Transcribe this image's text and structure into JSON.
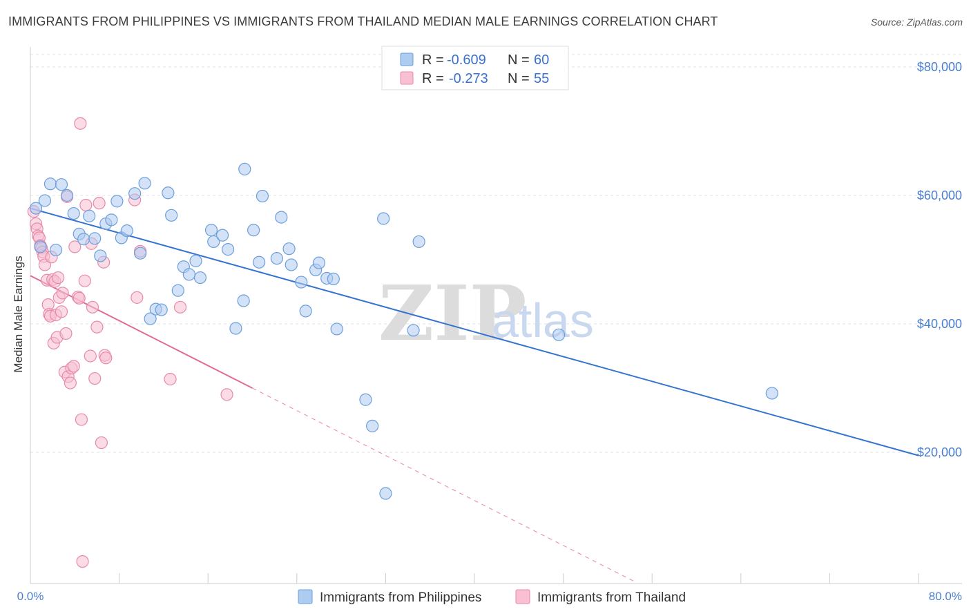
{
  "title": "IMMIGRANTS FROM PHILIPPINES VS IMMIGRANTS FROM THAILAND MEDIAN MALE EARNINGS CORRELATION CHART",
  "source": "Source: ZipAtlas.com",
  "watermark": {
    "zip": "ZIP",
    "atlas": "atlas"
  },
  "legend": {
    "r_label": "R =",
    "n_label": "N =",
    "philippines": {
      "r": "-0.609",
      "n": "60"
    },
    "thailand": {
      "r": "-0.273",
      "n": "55"
    }
  },
  "colors": {
    "philippines_fill": "#aecbf0",
    "philippines_stroke": "#6b9fdc",
    "philippines_line": "#3474d0",
    "thailand_fill": "#f8c0d2",
    "thailand_stroke": "#e78aa8",
    "thailand_line": "#e06b90"
  },
  "chart_data": {
    "type": "scatter",
    "title": "IMMIGRANTS FROM PHILIPPINES VS IMMIGRANTS FROM THAILAND MEDIAN MALE EARNINGS CORRELATION CHART",
    "xlabel": "",
    "ylabel": "Median Male Earnings",
    "xlim": [
      0,
      80
    ],
    "ylim": [
      0,
      80000
    ],
    "x_tick_labels": [
      "0.0%",
      "80.0%"
    ],
    "y_ticks": [
      20000,
      40000,
      60000,
      80000
    ],
    "y_tick_labels": [
      "$20,000",
      "$40,000",
      "$60,000",
      "$80,000"
    ],
    "grid": true,
    "legend_position": "top-center",
    "series": [
      {
        "name": "Immigrants from Philippines",
        "r": -0.609,
        "n": 60,
        "trend": {
          "x0": 0,
          "y0": 58000,
          "x1": 80,
          "y1": 19500
        },
        "points": [
          [
            0.5,
            58000
          ],
          [
            0.9,
            52000
          ],
          [
            1.3,
            59200
          ],
          [
            1.8,
            61800
          ],
          [
            2.3,
            51500
          ],
          [
            2.8,
            61700
          ],
          [
            3.3,
            60000
          ],
          [
            3.9,
            57200
          ],
          [
            4.4,
            54000
          ],
          [
            4.8,
            53200
          ],
          [
            5.3,
            56800
          ],
          [
            5.8,
            53300
          ],
          [
            6.3,
            50600
          ],
          [
            6.8,
            55600
          ],
          [
            7.3,
            56200
          ],
          [
            7.8,
            59100
          ],
          [
            8.2,
            53400
          ],
          [
            8.7,
            54500
          ],
          [
            9.4,
            60300
          ],
          [
            9.9,
            51000
          ],
          [
            10.3,
            61900
          ],
          [
            10.8,
            40800
          ],
          [
            11.3,
            42300
          ],
          [
            11.8,
            42200
          ],
          [
            12.4,
            60400
          ],
          [
            12.7,
            56900
          ],
          [
            13.3,
            45200
          ],
          [
            13.8,
            48900
          ],
          [
            14.3,
            47700
          ],
          [
            14.9,
            49800
          ],
          [
            15.3,
            47200
          ],
          [
            16.3,
            54600
          ],
          [
            16.5,
            52800
          ],
          [
            17.3,
            53800
          ],
          [
            17.8,
            51600
          ],
          [
            18.5,
            39300
          ],
          [
            19.2,
            43600
          ],
          [
            19.3,
            64100
          ],
          [
            20.1,
            54600
          ],
          [
            20.6,
            49600
          ],
          [
            20.9,
            59900
          ],
          [
            22.2,
            50200
          ],
          [
            22.6,
            56600
          ],
          [
            23.3,
            51700
          ],
          [
            23.5,
            49200
          ],
          [
            24.4,
            46500
          ],
          [
            24.8,
            42000
          ],
          [
            25.7,
            48400
          ],
          [
            26.0,
            49500
          ],
          [
            26.7,
            47100
          ],
          [
            27.3,
            47000
          ],
          [
            27.6,
            39200
          ],
          [
            30.2,
            28200
          ],
          [
            30.8,
            24100
          ],
          [
            31.8,
            56400
          ],
          [
            32.0,
            13600
          ],
          [
            34.5,
            39000
          ],
          [
            35.0,
            52800
          ],
          [
            47.6,
            38300
          ],
          [
            66.8,
            29200
          ]
        ]
      },
      {
        "name": "Immigrants from Thailand",
        "r": -0.273,
        "n": 55,
        "trend": {
          "x0": 0,
          "y0": 47500,
          "x1": 20,
          "y1": 30000,
          "dashed_to_x": 54.5
        },
        "points": [
          [
            0.3,
            57500
          ],
          [
            0.5,
            55600
          ],
          [
            0.6,
            54800
          ],
          [
            0.7,
            53700
          ],
          [
            0.8,
            53400
          ],
          [
            0.9,
            52200
          ],
          [
            1.0,
            51800
          ],
          [
            1.1,
            51200
          ],
          [
            1.2,
            50500
          ],
          [
            1.3,
            49200
          ],
          [
            1.5,
            46800
          ],
          [
            1.6,
            43000
          ],
          [
            1.7,
            41500
          ],
          [
            1.8,
            41200
          ],
          [
            1.9,
            50400
          ],
          [
            2.0,
            46900
          ],
          [
            2.1,
            37000
          ],
          [
            2.2,
            46600
          ],
          [
            2.3,
            41400
          ],
          [
            2.4,
            37900
          ],
          [
            2.5,
            47200
          ],
          [
            2.6,
            44100
          ],
          [
            2.8,
            41900
          ],
          [
            2.9,
            44800
          ],
          [
            3.1,
            32500
          ],
          [
            3.2,
            38500
          ],
          [
            3.3,
            59800
          ],
          [
            3.4,
            31800
          ],
          [
            3.6,
            30800
          ],
          [
            3.7,
            33100
          ],
          [
            3.9,
            33400
          ],
          [
            4.0,
            52000
          ],
          [
            4.3,
            44200
          ],
          [
            4.4,
            44000
          ],
          [
            4.5,
            71200
          ],
          [
            4.6,
            25100
          ],
          [
            4.7,
            3000
          ],
          [
            4.9,
            46700
          ],
          [
            5.0,
            58500
          ],
          [
            5.4,
            35000
          ],
          [
            5.5,
            52500
          ],
          [
            5.6,
            42600
          ],
          [
            5.8,
            31500
          ],
          [
            6.0,
            39500
          ],
          [
            6.2,
            58800
          ],
          [
            6.4,
            21500
          ],
          [
            6.6,
            49600
          ],
          [
            6.7,
            35100
          ],
          [
            6.8,
            34700
          ],
          [
            9.4,
            59300
          ],
          [
            9.6,
            44100
          ],
          [
            9.9,
            51300
          ],
          [
            12.6,
            31400
          ],
          [
            13.5,
            42600
          ],
          [
            17.7,
            29000
          ]
        ]
      }
    ]
  },
  "bottom_legend": {
    "philippines": "Immigrants from Philippines",
    "thailand": "Immigrants from Thailand"
  }
}
